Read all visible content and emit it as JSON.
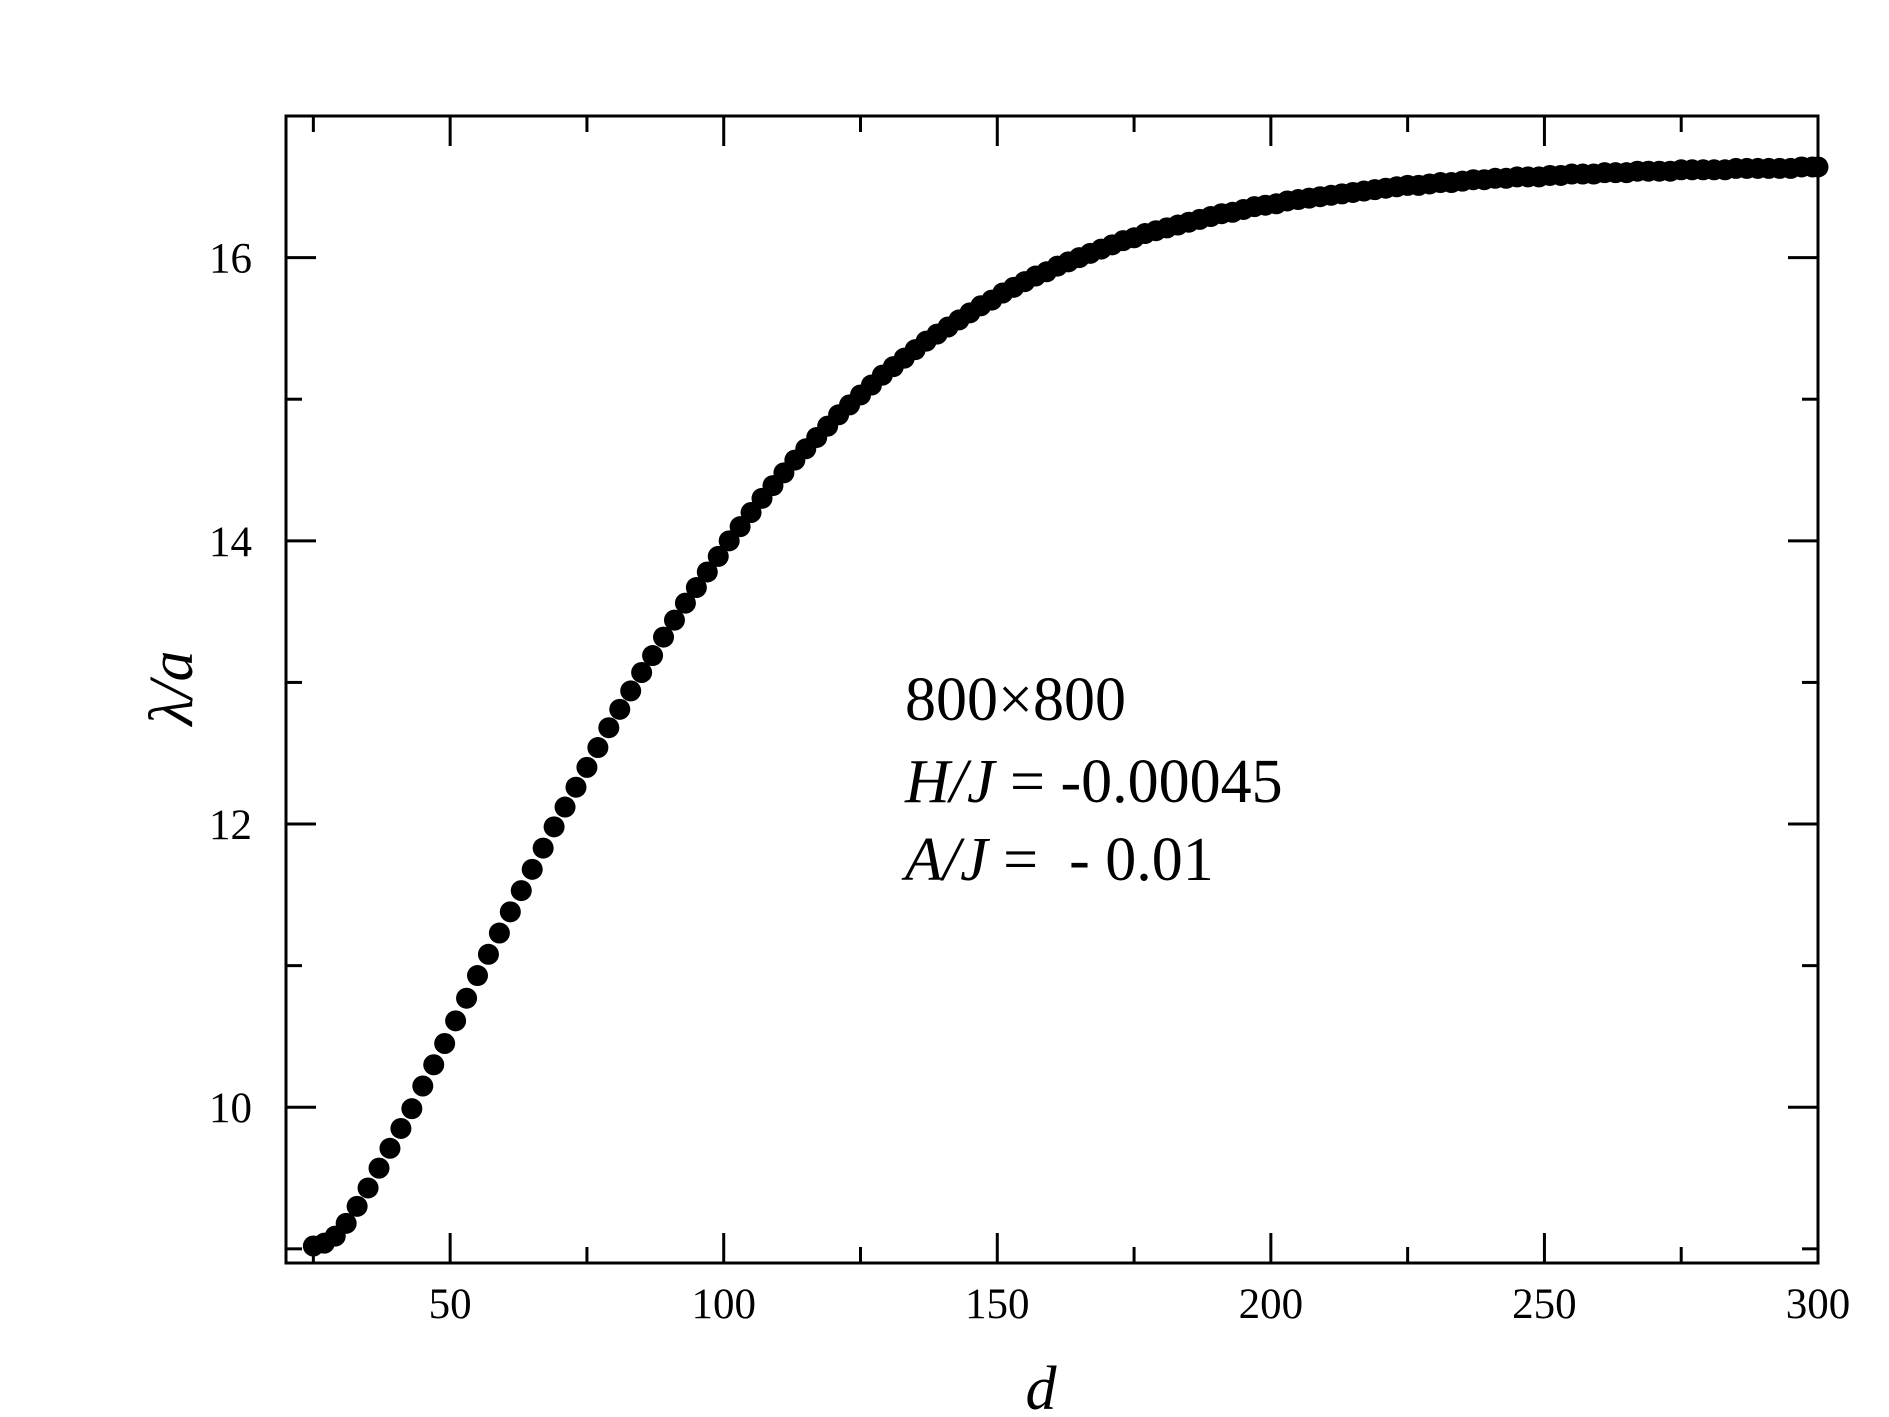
{
  "chart_data": {
    "type": "scatter",
    "xlabel": "d",
    "ylabel": "λ/a",
    "xlim": [
      20,
      300
    ],
    "ylim": [
      8.9,
      17.0
    ],
    "xticks_major": [
      50,
      100,
      150,
      200,
      250,
      300
    ],
    "xticks_minor": [
      25,
      75,
      125,
      175,
      225,
      275
    ],
    "yticks_major": [
      10,
      12,
      14,
      16
    ],
    "yticks_minor": [
      9,
      11,
      13,
      15
    ],
    "grid": false,
    "legend": "none",
    "marker_color": "#000000",
    "annotations": [
      {
        "parts": [
          {
            "text": "800×800",
            "italic": false
          }
        ]
      },
      {
        "parts": [
          {
            "text": "H/J",
            "italic": true
          },
          {
            "text": " = -0.00045",
            "italic": false
          }
        ]
      },
      {
        "parts": [
          {
            "text": "A/J",
            "italic": true
          },
          {
            "text": " =  - 0.01",
            "italic": false
          }
        ]
      }
    ],
    "series": [
      {
        "x": [
          25,
          27,
          29,
          31,
          33,
          35,
          37,
          39,
          41,
          43,
          45,
          47,
          49,
          51,
          53,
          55,
          57,
          59,
          61,
          63,
          65,
          67,
          69,
          71,
          73,
          75,
          77,
          79,
          81,
          83,
          85,
          87,
          89,
          91,
          93,
          95,
          97,
          99,
          101,
          103,
          105,
          107,
          109,
          111,
          113,
          115,
          117,
          119,
          121,
          123,
          125,
          127,
          129,
          131,
          133,
          135,
          137,
          139,
          141,
          143,
          145,
          147,
          149,
          151,
          153,
          155,
          157,
          159,
          161,
          163,
          165,
          167,
          169,
          171,
          173,
          175,
          177,
          179,
          181,
          183,
          185,
          187,
          189,
          191,
          193,
          195,
          197,
          199,
          201,
          203,
          205,
          207,
          209,
          211,
          213,
          215,
          217,
          219,
          221,
          223,
          225,
          227,
          229,
          231,
          233,
          235,
          237,
          239,
          241,
          243,
          245,
          247,
          249,
          251,
          253,
          255,
          257,
          259,
          261,
          263,
          265,
          267,
          269,
          271,
          273,
          275,
          277,
          279,
          281,
          283,
          285,
          287,
          289,
          291,
          293,
          295,
          297,
          299,
          300
        ],
        "y": [
          9.02,
          9.04,
          9.09,
          9.18,
          9.3,
          9.43,
          9.57,
          9.71,
          9.85,
          9.99,
          10.15,
          10.3,
          10.45,
          10.61,
          10.77,
          10.93,
          11.08,
          11.23,
          11.38,
          11.53,
          11.68,
          11.83,
          11.98,
          12.12,
          12.26,
          12.4,
          12.54,
          12.68,
          12.81,
          12.94,
          13.07,
          13.19,
          13.32,
          13.44,
          13.56,
          13.67,
          13.78,
          13.89,
          14,
          14.1,
          14.2,
          14.3,
          14.39,
          14.48,
          14.57,
          14.65,
          14.73,
          14.81,
          14.89,
          14.96,
          15.03,
          15.1,
          15.17,
          15.23,
          15.29,
          15.35,
          15.41,
          15.46,
          15.51,
          15.56,
          15.61,
          15.66,
          15.7,
          15.75,
          15.79,
          15.83,
          15.87,
          15.9,
          15.94,
          15.97,
          16,
          16.03,
          16.06,
          16.09,
          16.12,
          16.14,
          16.17,
          16.19,
          16.21,
          16.23,
          16.25,
          16.27,
          16.29,
          16.31,
          16.32,
          16.34,
          16.36,
          16.37,
          16.38,
          16.4,
          16.41,
          16.42,
          16.43,
          16.44,
          16.45,
          16.46,
          16.47,
          16.48,
          16.49,
          16.5,
          16.51,
          16.51,
          16.52,
          16.53,
          16.53,
          16.54,
          16.55,
          16.55,
          16.56,
          16.56,
          16.57,
          16.57,
          16.57,
          16.58,
          16.58,
          16.59,
          16.59,
          16.59,
          16.6,
          16.6,
          16.6,
          16.61,
          16.61,
          16.61,
          16.61,
          16.62,
          16.62,
          16.62,
          16.62,
          16.62,
          16.63,
          16.63,
          16.63,
          16.63,
          16.63,
          16.63,
          16.64,
          16.64,
          16.64
        ]
      }
    ]
  }
}
